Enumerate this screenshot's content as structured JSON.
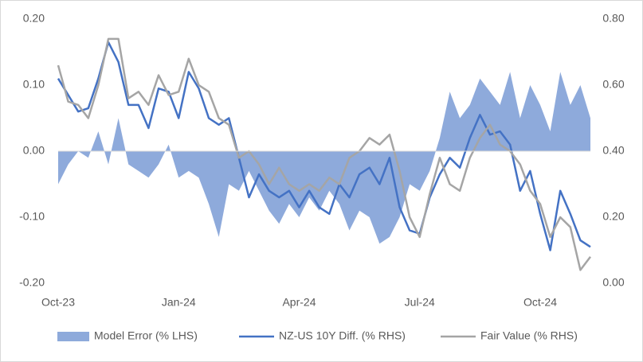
{
  "chart_data": {
    "type": "area_line_dual",
    "categories": [
      "Oct-23",
      null,
      null,
      null,
      null,
      null,
      null,
      null,
      null,
      null,
      null,
      null,
      "Jan-24",
      null,
      null,
      null,
      null,
      null,
      null,
      null,
      null,
      null,
      null,
      null,
      "Apr-24",
      null,
      null,
      null,
      null,
      null,
      null,
      null,
      null,
      null,
      null,
      null,
      "Jul-24",
      null,
      null,
      null,
      null,
      null,
      null,
      null,
      null,
      null,
      null,
      null,
      "Oct-24",
      null,
      null,
      null,
      null,
      null
    ],
    "series": [
      {
        "name": "Model Error (% LHS)",
        "color": "#8eaadb",
        "axis": "y",
        "values": [
          -0.05,
          -0.02,
          0.0,
          -0.01,
          0.03,
          -0.02,
          0.05,
          -0.02,
          -0.03,
          -0.04,
          -0.02,
          0.01,
          -0.04,
          -0.03,
          -0.04,
          -0.08,
          -0.13,
          -0.05,
          -0.06,
          -0.03,
          -0.06,
          -0.09,
          -0.11,
          -0.08,
          -0.1,
          -0.07,
          -0.09,
          -0.06,
          -0.08,
          -0.12,
          -0.09,
          -0.1,
          -0.14,
          -0.13,
          -0.1,
          -0.05,
          -0.06,
          -0.03,
          0.02,
          0.09,
          0.05,
          0.07,
          0.11,
          0.09,
          0.07,
          0.12,
          0.05,
          0.1,
          0.07,
          0.03,
          0.12,
          0.07,
          0.1,
          0.05
        ]
      },
      {
        "name": "NZ-US 10Y Diff. (% RHS)",
        "color": "#4472c4",
        "axis": "y2",
        "values": [
          0.62,
          0.57,
          0.52,
          0.53,
          0.62,
          0.73,
          0.67,
          0.54,
          0.54,
          0.47,
          0.59,
          0.58,
          0.5,
          0.64,
          0.59,
          0.5,
          0.48,
          0.5,
          0.38,
          0.26,
          0.33,
          0.28,
          0.26,
          0.28,
          0.23,
          0.28,
          0.23,
          0.21,
          0.3,
          0.26,
          0.33,
          0.35,
          0.3,
          0.38,
          0.23,
          0.16,
          0.15,
          0.26,
          0.33,
          0.38,
          0.35,
          0.44,
          0.51,
          0.45,
          0.46,
          0.42,
          0.28,
          0.34,
          0.21,
          0.1,
          0.28,
          0.21,
          0.13,
          0.11
        ]
      },
      {
        "name": "Fair Value (% RHS)",
        "color": "#a5a5a5",
        "axis": "y2",
        "values": [
          0.66,
          0.55,
          0.54,
          0.5,
          0.6,
          0.74,
          0.74,
          0.56,
          0.58,
          0.54,
          0.63,
          0.57,
          0.58,
          0.68,
          0.6,
          0.58,
          0.5,
          0.48,
          0.38,
          0.4,
          0.36,
          0.3,
          0.35,
          0.3,
          0.28,
          0.3,
          0.28,
          0.32,
          0.3,
          0.38,
          0.4,
          0.44,
          0.42,
          0.45,
          0.34,
          0.2,
          0.14,
          0.27,
          0.38,
          0.3,
          0.28,
          0.38,
          0.44,
          0.48,
          0.42,
          0.4,
          0.36,
          0.28,
          0.24,
          0.14,
          0.2,
          0.17,
          0.04,
          0.08
        ]
      }
    ],
    "ylim": [
      -0.2,
      0.2
    ],
    "yticks": [
      {
        "value": -0.2,
        "label": "-0.20"
      },
      {
        "value": -0.1,
        "label": "-0.10"
      },
      {
        "value": 0,
        "label": "0.00"
      },
      {
        "value": 0.1,
        "label": "0.10"
      },
      {
        "value": 0.2,
        "label": "0.20"
      }
    ],
    "y2lim": [
      0,
      0.8
    ],
    "y2ticks": [
      {
        "value": 0,
        "label": "0.00"
      },
      {
        "value": 0.2,
        "label": "0.20"
      },
      {
        "value": 0.4,
        "label": "0.40"
      },
      {
        "value": 0.6,
        "label": "0.60"
      },
      {
        "value": 0.8,
        "label": "0.80"
      }
    ],
    "legend": "bottom"
  }
}
